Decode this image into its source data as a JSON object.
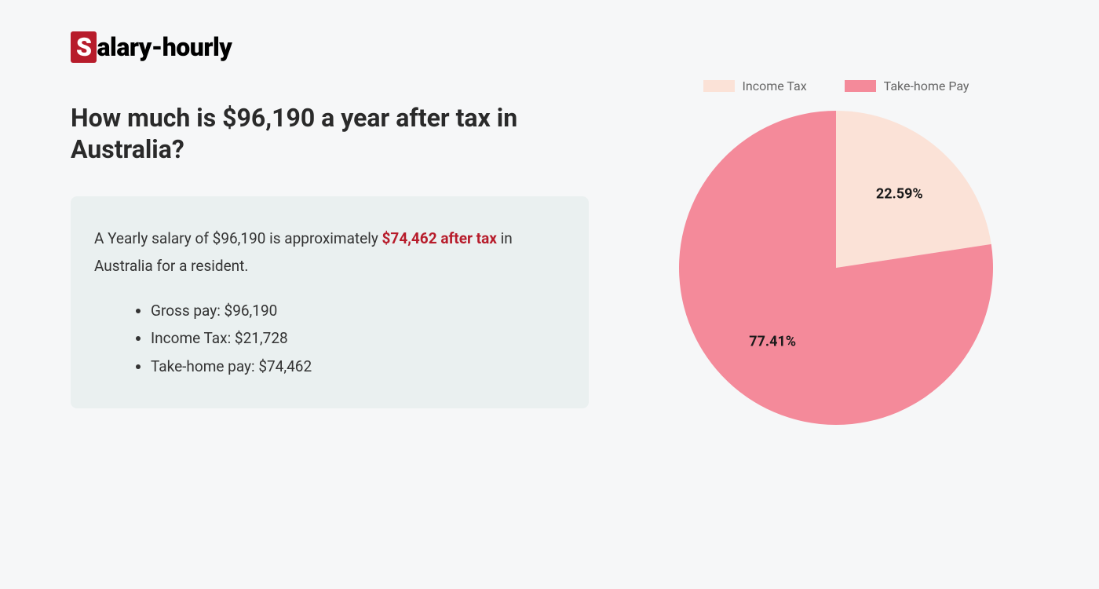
{
  "logo": {
    "s": "S",
    "rest": "alary-hourly"
  },
  "headline": "How much is $96,190 a year after tax in Australia?",
  "summary": {
    "prefix": "A Yearly salary of $96,190 is approximately ",
    "highlight": "$74,462 after tax",
    "suffix": " in Australia for a resident.",
    "bullets": [
      "Gross pay: $96,190",
      "Income Tax: $21,728",
      "Take-home pay: $74,462"
    ]
  },
  "chart": {
    "type": "pie",
    "radius": 200,
    "background_color": "#f6f7f8",
    "slices": [
      {
        "label": "Income Tax",
        "value": 22.59,
        "display": "22.59%",
        "color": "#fbe2d7"
      },
      {
        "label": "Take-home Pay",
        "value": 77.41,
        "display": "77.41%",
        "color": "#f48a9a"
      }
    ],
    "legend_text_color": "#666666",
    "label_text_color": "#1a1a1a",
    "label_fontsize": 18,
    "legend_fontsize": 16
  }
}
